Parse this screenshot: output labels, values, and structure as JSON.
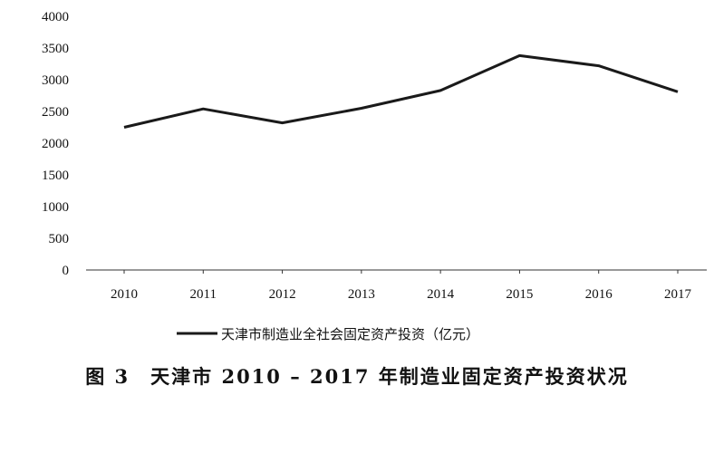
{
  "chart_data": {
    "type": "line",
    "categories": [
      "2010",
      "2011",
      "2012",
      "2013",
      "2014",
      "2015",
      "2016",
      "2017"
    ],
    "series": [
      {
        "name": "天津市制造业全社会固定资产投资（亿元）",
        "values": [
          2250,
          2540,
          2320,
          2550,
          2830,
          3380,
          3220,
          2810
        ]
      }
    ],
    "y_ticks": [
      "0",
      "500",
      "1000",
      "1500",
      "2000",
      "2500",
      "3000",
      "3500",
      "4000"
    ],
    "ylim": [
      0,
      4000
    ],
    "grid": false,
    "legend_position": "bottom",
    "line_color": "#1a1a1a"
  },
  "caption": "图 3　天津市 2010 – 2017 年制造业固定资产投资状况"
}
